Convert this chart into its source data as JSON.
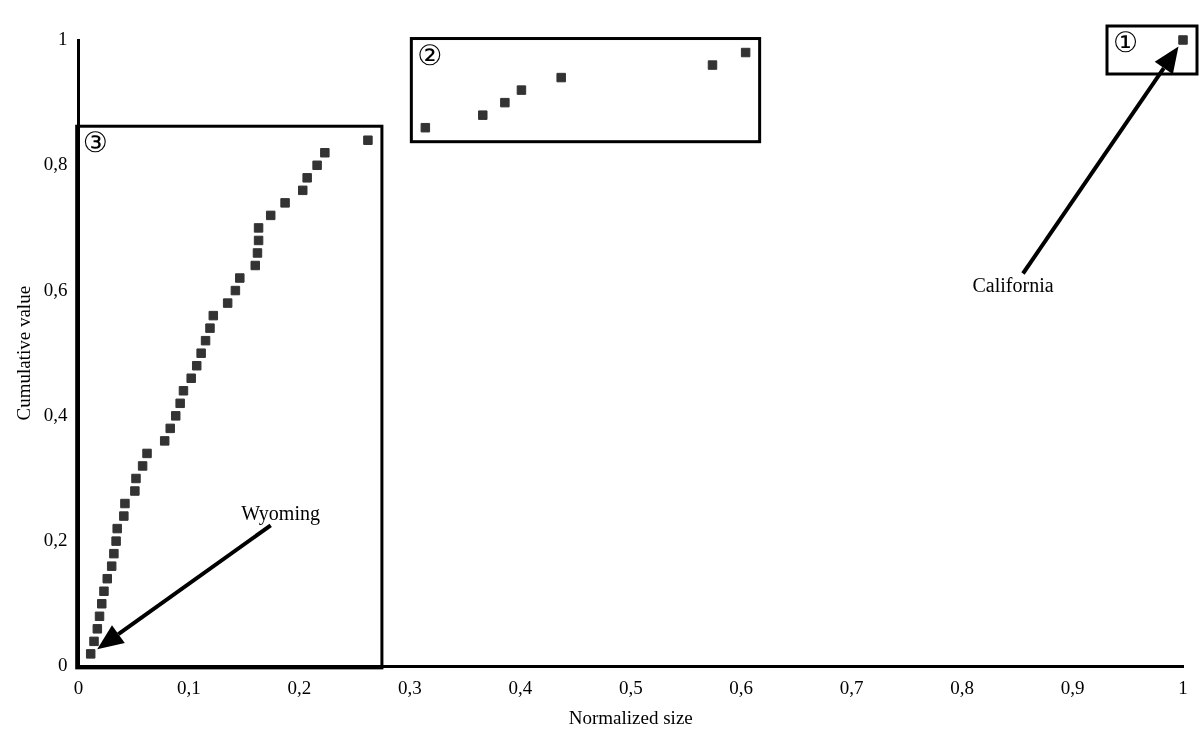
{
  "chart_data": {
    "type": "scatter",
    "xlabel": "Normalized size",
    "ylabel": "Cumulative value",
    "marker": "square",
    "grid": false,
    "legend": false,
    "xlim": [
      0,
      1
    ],
    "ylim": [
      0,
      1
    ],
    "xticks": [
      0,
      {
        "value": 0.1,
        "label": "0,1"
      },
      {
        "value": 0.2,
        "label": "0,2"
      },
      {
        "value": 0.3,
        "label": "0,3"
      },
      {
        "value": 0.4,
        "label": "0,4"
      },
      {
        "value": 0.5,
        "label": "0,5"
      },
      {
        "value": 0.6,
        "label": "0,6"
      },
      {
        "value": 0.7,
        "label": "0,7"
      },
      {
        "value": 0.8,
        "label": "0,8"
      },
      {
        "value": 0.9,
        "label": "0,9"
      },
      1
    ],
    "yticks": [
      0,
      {
        "value": 0.2,
        "label": "0,2"
      },
      {
        "value": 0.4,
        "label": "0,4"
      },
      {
        "value": 0.6,
        "label": "0,6"
      },
      {
        "value": 0.8,
        "label": "0,8"
      },
      1
    ],
    "series": [
      {
        "color": "#333333",
        "x": [
          1.0
        ],
        "values": [
          1.0
        ]
      },
      {
        "color": "#333333",
        "x": [
          0.314,
          0.366,
          0.386,
          0.401,
          0.437,
          0.574,
          0.604
        ],
        "values": [
          0.86,
          0.88,
          0.9,
          0.92,
          0.94,
          0.96,
          0.98
        ]
      },
      {
        "color": "#333333",
        "x": [
          0.011,
          0.014,
          0.017,
          0.019,
          0.021,
          0.023,
          0.026,
          0.03,
          0.032,
          0.034,
          0.035,
          0.041,
          0.042,
          0.051,
          0.052,
          0.058,
          0.062,
          0.078,
          0.083,
          0.088,
          0.092,
          0.095,
          0.102,
          0.107,
          0.111,
          0.115,
          0.119,
          0.122,
          0.135,
          0.142,
          0.146,
          0.16,
          0.162,
          0.163,
          0.163,
          0.174,
          0.187,
          0.203,
          0.207,
          0.216,
          0.223,
          0.262
        ],
        "values": [
          0.02,
          0.04,
          0.06,
          0.08,
          0.1,
          0.12,
          0.14,
          0.16,
          0.18,
          0.2,
          0.22,
          0.24,
          0.26,
          0.28,
          0.3,
          0.32,
          0.34,
          0.36,
          0.38,
          0.4,
          0.42,
          0.44,
          0.46,
          0.48,
          0.5,
          0.52,
          0.54,
          0.56,
          0.58,
          0.6,
          0.62,
          0.64,
          0.66,
          0.68,
          0.7,
          0.72,
          0.74,
          0.76,
          0.78,
          0.8,
          0.82,
          0.84
        ]
      }
    ],
    "annotations": [
      "①",
      "②",
      "③",
      "California",
      "Wyoming"
    ]
  }
}
